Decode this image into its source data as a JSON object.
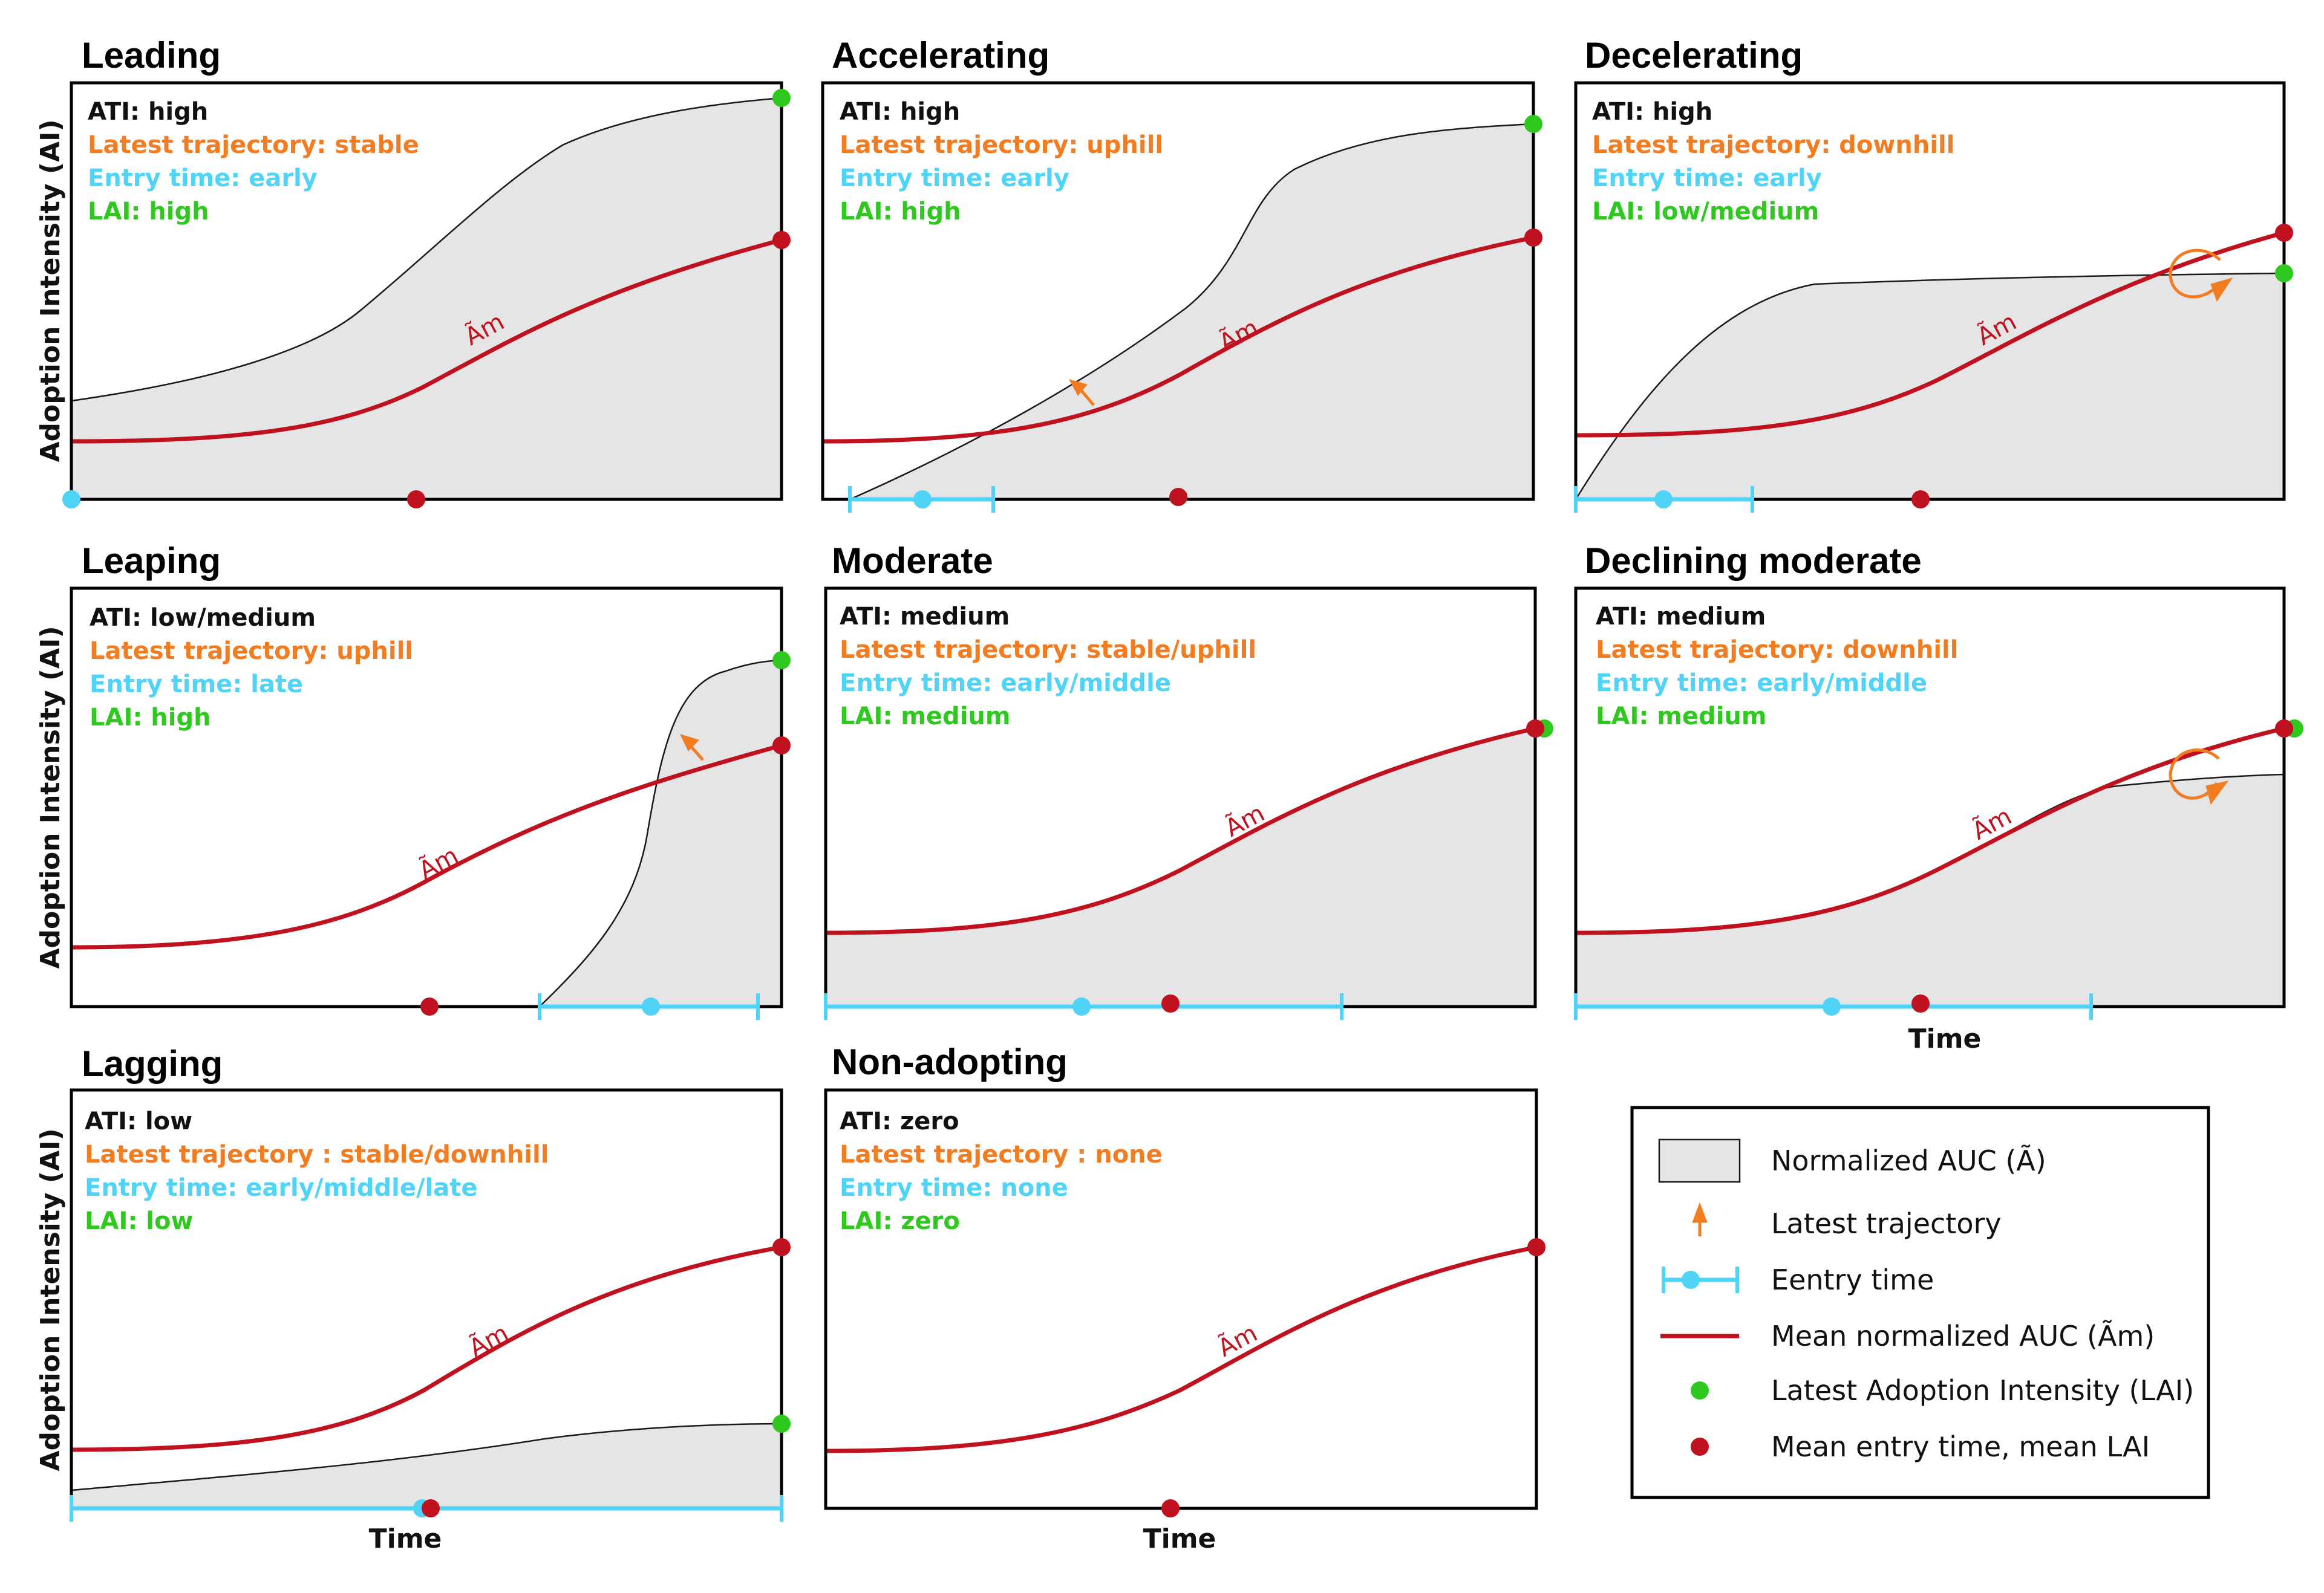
{
  "axis": {
    "y_label": "Adoption Intensity (AI)",
    "x_label": "Time"
  },
  "am_symbol": "Ãm",
  "panels": [
    {
      "title": "Leading",
      "ati": "ATI: high",
      "trajectory": "Latest trajectory: stable",
      "entry": "Entry time: early",
      "lai": "LAI: high"
    },
    {
      "title": "Accelerating",
      "ati": "ATI: high",
      "trajectory": "Latest trajectory: uphill",
      "entry": "Entry time: early",
      "lai": "LAI: high"
    },
    {
      "title": "Decelerating",
      "ati": "ATI: high",
      "trajectory": "Latest trajectory: downhill",
      "entry": "Entry time: early",
      "lai": "LAI: low/medium"
    },
    {
      "title": "Leaping",
      "ati": "ATI: low/medium",
      "trajectory": "Latest trajectory: uphill",
      "entry": "Entry time: late",
      "lai": "LAI: high"
    },
    {
      "title": "Moderate",
      "ati": "ATI: medium",
      "trajectory": "Latest trajectory: stable/uphill",
      "entry": "Entry time: early/middle",
      "lai": "LAI: medium"
    },
    {
      "title": "Declining moderate",
      "ati": "ATI: medium",
      "trajectory": "Latest trajectory: downhill",
      "entry": "Entry time: early/middle",
      "lai": "LAI: medium"
    },
    {
      "title": "Lagging",
      "ati": "ATI: low",
      "trajectory": "Latest trajectory : stable/downhill",
      "entry": "Entry time: early/middle/late",
      "lai": "LAI: low"
    },
    {
      "title": "Non-adopting",
      "ati": "ATI: zero",
      "trajectory": "Latest trajectory : none",
      "entry": "Entry time: none",
      "lai": "LAI: zero"
    }
  ],
  "legend": {
    "auc": "Normalized AUC (Ã)",
    "trajectory": "Latest trajectory",
    "entry": "Eentry time",
    "mean_auc": "Mean normalized AUC (Ãm)",
    "lai": "Latest Adoption Intensity (LAI)",
    "mean_entry": "Mean entry time, mean LAI"
  },
  "colors": {
    "ati": "#111111",
    "trajectory": "#f47c20",
    "entry": "#4fd3f7",
    "lai": "#2ec81e",
    "mean": "#c0111f",
    "auc_fill": "#e5e5e5"
  }
}
